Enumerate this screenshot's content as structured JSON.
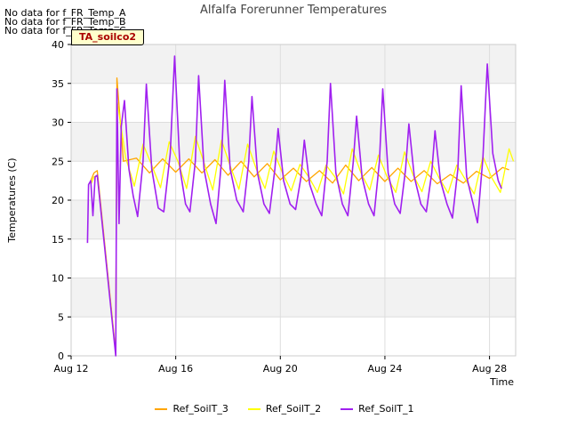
{
  "chart_data": {
    "type": "line",
    "title": "Alfalfa Forerunner Temperatures",
    "xlabel": "Time",
    "ylabel": "Temperatures (C)",
    "xlim": [
      "2023-08-12",
      "2023-08-29"
    ],
    "ylim": [
      0,
      40
    ],
    "yticks": [
      0,
      5,
      10,
      15,
      20,
      25,
      30,
      35,
      40
    ],
    "xticks": [
      {
        "date": "2023-08-12",
        "label": "Aug 12"
      },
      {
        "date": "2023-08-16",
        "label": "Aug 16"
      },
      {
        "date": "2023-08-20",
        "label": "Aug 20"
      },
      {
        "date": "2023-08-24",
        "label": "Aug 24"
      },
      {
        "date": "2023-08-28",
        "label": "Aug 28"
      }
    ],
    "grid": true,
    "legend_position": "bottom",
    "no_data_messages": [
      "No data for f_FR_Temp_A",
      "No data for f_FR_Temp_B",
      "No data for f_FR_Temp_C"
    ],
    "annotation": "TA_soilco2",
    "series": [
      {
        "name": "Ref_SoilT_3",
        "color": "#ffa500",
        "points": [
          [
            "2023-08-12 18:00",
            22.5
          ],
          [
            "2023-08-12 21:00",
            23.5
          ],
          [
            "2023-08-13 00:00",
            23.8
          ],
          [
            "2023-08-13 17:00",
            0.5
          ],
          [
            "2023-08-13 18:00",
            35.7
          ],
          [
            "2023-08-14 00:00",
            25.0
          ],
          [
            "2023-08-14 12:00",
            25.4
          ],
          [
            "2023-08-15 00:00",
            23.5
          ],
          [
            "2023-08-15 12:00",
            25.3
          ],
          [
            "2023-08-16 00:00",
            23.6
          ],
          [
            "2023-08-16 12:00",
            25.3
          ],
          [
            "2023-08-17 00:00",
            23.5
          ],
          [
            "2023-08-17 12:00",
            25.2
          ],
          [
            "2023-08-18 00:00",
            23.2
          ],
          [
            "2023-08-18 12:00",
            25.0
          ],
          [
            "2023-08-19 00:00",
            23.0
          ],
          [
            "2023-08-19 12:00",
            24.7
          ],
          [
            "2023-08-20 00:00",
            22.6
          ],
          [
            "2023-08-20 12:00",
            24.1
          ],
          [
            "2023-08-21 00:00",
            22.4
          ],
          [
            "2023-08-21 12:00",
            23.8
          ],
          [
            "2023-08-22 00:00",
            22.2
          ],
          [
            "2023-08-22 12:00",
            24.5
          ],
          [
            "2023-08-23 00:00",
            22.5
          ],
          [
            "2023-08-23 12:00",
            24.2
          ],
          [
            "2023-08-24 00:00",
            22.4
          ],
          [
            "2023-08-24 12:00",
            24.1
          ],
          [
            "2023-08-25 00:00",
            22.4
          ],
          [
            "2023-08-25 12:00",
            23.8
          ],
          [
            "2023-08-26 00:00",
            22.1
          ],
          [
            "2023-08-26 12:00",
            23.3
          ],
          [
            "2023-08-27 00:00",
            22.2
          ],
          [
            "2023-08-27 12:00",
            23.7
          ],
          [
            "2023-08-28 00:00",
            22.8
          ],
          [
            "2023-08-28 12:00",
            24.2
          ],
          [
            "2023-08-28 18:00",
            23.9
          ]
        ]
      },
      {
        "name": "Ref_SoilT_2",
        "color": "#ffff00",
        "points": [
          [
            "2023-08-12 18:00",
            22.0
          ],
          [
            "2023-08-12 21:00",
            23.0
          ],
          [
            "2023-08-13 00:00",
            23.2
          ],
          [
            "2023-08-13 17:00",
            0.4
          ],
          [
            "2023-08-13 18:00",
            33.0
          ],
          [
            "2023-08-14 02:00",
            25.5
          ],
          [
            "2023-08-14 10:00",
            21.8
          ],
          [
            "2023-08-14 18:00",
            27.2
          ],
          [
            "2023-08-15 02:00",
            24.5
          ],
          [
            "2023-08-15 10:00",
            21.6
          ],
          [
            "2023-08-15 18:00",
            27.5
          ],
          [
            "2023-08-16 02:00",
            25.0
          ],
          [
            "2023-08-16 10:00",
            21.5
          ],
          [
            "2023-08-16 18:00",
            28.2
          ],
          [
            "2023-08-17 02:00",
            24.8
          ],
          [
            "2023-08-17 10:00",
            21.3
          ],
          [
            "2023-08-17 18:00",
            27.7
          ],
          [
            "2023-08-18 02:00",
            24.4
          ],
          [
            "2023-08-18 10:00",
            21.4
          ],
          [
            "2023-08-18 18:00",
            27.2
          ],
          [
            "2023-08-19 02:00",
            24.0
          ],
          [
            "2023-08-19 10:00",
            21.5
          ],
          [
            "2023-08-19 18:00",
            26.3
          ],
          [
            "2023-08-20 02:00",
            23.5
          ],
          [
            "2023-08-20 10:00",
            21.2
          ],
          [
            "2023-08-20 18:00",
            24.6
          ],
          [
            "2023-08-21 02:00",
            23.0
          ],
          [
            "2023-08-21 10:00",
            21.0
          ],
          [
            "2023-08-21 18:00",
            24.5
          ],
          [
            "2023-08-22 02:00",
            23.0
          ],
          [
            "2023-08-22 10:00",
            20.8
          ],
          [
            "2023-08-22 18:00",
            26.6
          ],
          [
            "2023-08-23 02:00",
            23.5
          ],
          [
            "2023-08-23 10:00",
            21.3
          ],
          [
            "2023-08-23 18:00",
            25.8
          ],
          [
            "2023-08-24 02:00",
            23.0
          ],
          [
            "2023-08-24 10:00",
            21.0
          ],
          [
            "2023-08-24 18:00",
            26.2
          ],
          [
            "2023-08-25 02:00",
            23.2
          ],
          [
            "2023-08-25 10:00",
            21.1
          ],
          [
            "2023-08-25 18:00",
            25.0
          ],
          [
            "2023-08-26 02:00",
            22.8
          ],
          [
            "2023-08-26 10:00",
            20.9
          ],
          [
            "2023-08-26 18:00",
            24.5
          ],
          [
            "2023-08-27 02:00",
            22.6
          ],
          [
            "2023-08-27 10:00",
            20.8
          ],
          [
            "2023-08-27 18:00",
            25.6
          ],
          [
            "2023-08-28 02:00",
            22.9
          ],
          [
            "2023-08-28 10:00",
            21.0
          ],
          [
            "2023-08-28 18:00",
            26.6
          ],
          [
            "2023-08-28 22:00",
            25.0
          ]
        ]
      },
      {
        "name": "Ref_SoilT_1",
        "color": "#a020f0",
        "points": [
          [
            "2023-08-12 15:00",
            14.5
          ],
          [
            "2023-08-12 16:00",
            22.0
          ],
          [
            "2023-08-12 18:00",
            22.5
          ],
          [
            "2023-08-12 20:00",
            18.0
          ],
          [
            "2023-08-12 22:00",
            23.0
          ],
          [
            "2023-08-13 00:00",
            23.2
          ],
          [
            "2023-08-13 17:00",
            0.0
          ],
          [
            "2023-08-13 18:00",
            34.3
          ],
          [
            "2023-08-13 20:00",
            17.0
          ],
          [
            "2023-08-13 22:00",
            29.5
          ],
          [
            "2023-08-14 01:00",
            32.8
          ],
          [
            "2023-08-14 05:00",
            24.0
          ],
          [
            "2023-08-14 09:00",
            20.5
          ],
          [
            "2023-08-14 13:00",
            17.9
          ],
          [
            "2023-08-14 18:00",
            25.0
          ],
          [
            "2023-08-14 21:00",
            34.9
          ],
          [
            "2023-08-15 02:00",
            24.0
          ],
          [
            "2023-08-15 08:00",
            19.0
          ],
          [
            "2023-08-15 13:00",
            18.5
          ],
          [
            "2023-08-15 19:00",
            26.0
          ],
          [
            "2023-08-15 23:00",
            38.5
          ],
          [
            "2023-08-16 04:00",
            24.0
          ],
          [
            "2023-08-16 09:00",
            19.5
          ],
          [
            "2023-08-16 13:00",
            18.5
          ],
          [
            "2023-08-16 18:00",
            25.0
          ],
          [
            "2023-08-16 21:00",
            36.0
          ],
          [
            "2023-08-17 02:00",
            24.0
          ],
          [
            "2023-08-17 08:00",
            19.5
          ],
          [
            "2023-08-17 13:00",
            17.0
          ],
          [
            "2023-08-17 18:00",
            25.0
          ],
          [
            "2023-08-17 21:00",
            35.4
          ],
          [
            "2023-08-18 02:00",
            24.0
          ],
          [
            "2023-08-18 08:00",
            20.0
          ],
          [
            "2023-08-18 14:00",
            18.5
          ],
          [
            "2023-08-18 19:00",
            25.0
          ],
          [
            "2023-08-18 22:00",
            33.3
          ],
          [
            "2023-08-19 03:00",
            23.5
          ],
          [
            "2023-08-19 09:00",
            19.5
          ],
          [
            "2023-08-19 14:00",
            18.3
          ],
          [
            "2023-08-19 19:00",
            24.0
          ],
          [
            "2023-08-19 22:00",
            29.2
          ],
          [
            "2023-08-20 03:00",
            22.5
          ],
          [
            "2023-08-20 09:00",
            19.5
          ],
          [
            "2023-08-20 14:00",
            18.8
          ],
          [
            "2023-08-20 19:00",
            23.0
          ],
          [
            "2023-08-20 22:00",
            27.7
          ],
          [
            "2023-08-21 03:00",
            22.0
          ],
          [
            "2023-08-21 09:00",
            19.5
          ],
          [
            "2023-08-21 14:00",
            18.0
          ],
          [
            "2023-08-21 19:00",
            25.0
          ],
          [
            "2023-08-21 22:00",
            35.0
          ],
          [
            "2023-08-22 03:00",
            23.5
          ],
          [
            "2023-08-22 09:00",
            19.5
          ],
          [
            "2023-08-22 14:00",
            18.0
          ],
          [
            "2023-08-22 19:00",
            25.0
          ],
          [
            "2023-08-22 22:00",
            30.8
          ],
          [
            "2023-08-23 03:00",
            23.0
          ],
          [
            "2023-08-23 09:00",
            19.5
          ],
          [
            "2023-08-23 14:00",
            18.0
          ],
          [
            "2023-08-23 19:00",
            25.0
          ],
          [
            "2023-08-23 22:00",
            34.3
          ],
          [
            "2023-08-24 03:00",
            23.5
          ],
          [
            "2023-08-24 09:00",
            19.5
          ],
          [
            "2023-08-24 14:00",
            18.3
          ],
          [
            "2023-08-24 19:00",
            24.0
          ],
          [
            "2023-08-24 22:00",
            29.8
          ],
          [
            "2023-08-25 03:00",
            23.0
          ],
          [
            "2023-08-25 09:00",
            19.5
          ],
          [
            "2023-08-25 14:00",
            18.5
          ],
          [
            "2023-08-25 19:00",
            23.5
          ],
          [
            "2023-08-25 22:00",
            28.9
          ],
          [
            "2023-08-26 03:00",
            22.5
          ],
          [
            "2023-08-26 09:00",
            19.5
          ],
          [
            "2023-08-26 14:00",
            17.7
          ],
          [
            "2023-08-26 19:00",
            24.0
          ],
          [
            "2023-08-26 22:00",
            34.7
          ],
          [
            "2023-08-27 03:00",
            23.0
          ],
          [
            "2023-08-27 09:00",
            19.5
          ],
          [
            "2023-08-27 13:00",
            17.1
          ],
          [
            "2023-08-27 18:00",
            25.5
          ],
          [
            "2023-08-27 22:00",
            37.5
          ],
          [
            "2023-08-28 03:00",
            26.0
          ],
          [
            "2023-08-28 08:00",
            22.5
          ],
          [
            "2023-08-28 11:00",
            21.5
          ]
        ]
      }
    ]
  }
}
